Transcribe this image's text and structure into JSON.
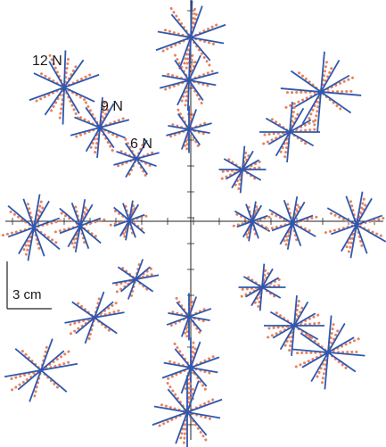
{
  "labels": {
    "force_12": "12 N",
    "force_9": "9 N",
    "force_6": "6 N",
    "scale": "3 cm"
  },
  "colors": {
    "model_lines": "#2e58b0",
    "data_dots": "#e8825e",
    "axes": "#222222"
  },
  "clusters": [
    {
      "name": "cluster-12n-upper-left",
      "angles": [
        -25,
        20,
        -60,
        55,
        88
      ],
      "spread": 1.1
    },
    {
      "name": "cluster-9n-upper-left",
      "angles": [
        -22,
        15,
        -55,
        60,
        85
      ],
      "spread": 0.9
    },
    {
      "name": "cluster-6n-upper-left",
      "angles": [
        -20,
        15,
        -55,
        60
      ],
      "spread": 0.7
    },
    {
      "name": "cluster-top-axis-far",
      "angles": [
        -10,
        20,
        -50,
        70,
        88
      ],
      "spread": 1.1
    },
    {
      "name": "cluster-top-axis-mid",
      "angles": [
        -10,
        15,
        -55,
        65,
        88
      ],
      "spread": 0.9
    },
    {
      "name": "cluster-top-axis-near",
      "angles": [
        -10,
        15,
        -55,
        70,
        90
      ],
      "spread": 0.7
    },
    {
      "name": "cluster-upper-right-far",
      "angles": [
        -35,
        -5,
        30,
        60,
        85
      ],
      "spread": 1.2
    },
    {
      "name": "cluster-upper-right-mid",
      "angles": [
        -30,
        0,
        30,
        60,
        85
      ],
      "spread": 0.9
    },
    {
      "name": "cluster-upper-right-near",
      "angles": [
        -30,
        0,
        30,
        60,
        85
      ],
      "spread": 0.7
    },
    {
      "name": "cluster-left-axis-far",
      "angles": [
        -70,
        -40,
        20,
        60,
        80
      ],
      "spread": 1.0
    },
    {
      "name": "cluster-left-axis-mid",
      "angles": [
        -70,
        -40,
        20,
        60,
        80
      ],
      "spread": 0.8
    },
    {
      "name": "cluster-left-axis-near",
      "angles": [
        -70,
        -40,
        20,
        60,
        80
      ],
      "spread": 0.6
    },
    {
      "name": "cluster-right-axis-near",
      "angles": [
        -70,
        -30,
        20,
        60,
        80
      ],
      "spread": 0.6
    },
    {
      "name": "cluster-right-axis-mid",
      "angles": [
        -70,
        -30,
        20,
        60,
        80
      ],
      "spread": 0.8
    },
    {
      "name": "cluster-right-axis-far",
      "angles": [
        -70,
        -30,
        20,
        60,
        80
      ],
      "spread": 1.0
    },
    {
      "name": "cluster-lower-left-near",
      "angles": [
        -35,
        10,
        40,
        70
      ],
      "spread": 0.7
    },
    {
      "name": "cluster-lower-left-mid",
      "angles": [
        -35,
        10,
        40,
        70
      ],
      "spread": 0.9
    },
    {
      "name": "cluster-lower-left-far",
      "angles": [
        -40,
        10,
        40,
        70
      ],
      "spread": 1.1
    },
    {
      "name": "cluster-bottom-axis-near",
      "angles": [
        -10,
        20,
        -50,
        70,
        90
      ],
      "spread": 0.7
    },
    {
      "name": "cluster-bottom-axis-mid",
      "angles": [
        -10,
        20,
        -50,
        70,
        90
      ],
      "spread": 0.9
    },
    {
      "name": "cluster-bottom-axis-far",
      "angles": [
        -10,
        20,
        -50,
        70,
        90
      ],
      "spread": 1.1
    },
    {
      "name": "cluster-lower-right-near",
      "angles": [
        -30,
        0,
        30,
        60,
        85
      ],
      "spread": 0.7
    },
    {
      "name": "cluster-lower-right-mid",
      "angles": [
        -30,
        0,
        30,
        60,
        85
      ],
      "spread": 0.9
    },
    {
      "name": "cluster-lower-right-far",
      "angles": [
        -35,
        -5,
        30,
        60,
        85
      ],
      "spread": 1.1
    }
  ]
}
